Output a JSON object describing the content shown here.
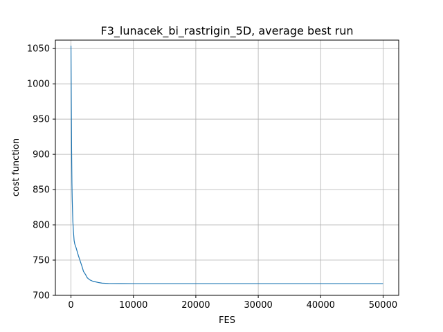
{
  "chart_data": {
    "type": "line",
    "title": "F3_lunacek_bi_rastrigin_5D, average best run",
    "xlabel": "FES",
    "ylabel": "cost function",
    "xlim": [
      -2500,
      52500
    ],
    "ylim": [
      700,
      1062
    ],
    "xticks": [
      0,
      10000,
      20000,
      30000,
      40000,
      50000
    ],
    "yticks": [
      700,
      750,
      800,
      850,
      900,
      950,
      1000,
      1050
    ],
    "grid": true,
    "colors": {
      "line": "#1f77b4",
      "grid": "#b0b0b0"
    },
    "series": [
      {
        "x": [
          0,
          50,
          100,
          150,
          200,
          300,
          400,
          500,
          600,
          800,
          1000,
          1200,
          1500,
          1800,
          2000,
          2300,
          2600,
          3000,
          3500,
          4000,
          4500,
          5000,
          6000,
          8000,
          10000,
          20000,
          30000,
          40000,
          50000
        ],
        "y": [
          1054,
          975,
          905,
          860,
          835,
          805,
          790,
          778,
          773,
          768,
          762,
          756,
          748,
          740,
          734,
          730,
          725,
          722,
          720,
          719,
          718,
          717.3,
          716.8,
          716.7,
          716.6,
          716.6,
          716.6,
          716.6,
          716.6
        ]
      }
    ]
  }
}
